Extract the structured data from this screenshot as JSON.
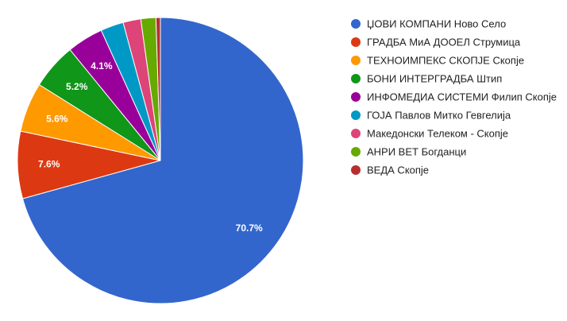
{
  "chart_data": {
    "type": "pie",
    "categories": [
      "ЏОВИ КОМПАНИ Ново Село",
      "ГРАДБА МиА ДООЕЛ Струмица",
      "ТЕХНОИМПЕКС СКОПЈЕ Скопје",
      "БОНИ ИНТЕРГРАДБА Штип",
      "ИНФОМЕДИА СИСТЕМИ Филип Скопје",
      "ГОЈА Павлов Митко Гевгелија",
      "Македонски Телеком - Скопје",
      "АНРИ ВЕТ Богданци",
      "ВЕДА Скопје"
    ],
    "values": [
      70.7,
      7.6,
      5.6,
      5.2,
      4.1,
      2.6,
      2.0,
      1.7,
      0.5
    ],
    "data_labels": [
      "70.7%",
      "7.6%",
      "5.6%",
      "5.2%",
      "4.1%",
      "",
      "",
      "",
      ""
    ],
    "colors": [
      "#3366cc",
      "#dc3912",
      "#ff9900",
      "#109618",
      "#990099",
      "#0099c6",
      "#dd4477",
      "#66aa00",
      "#b82e2e"
    ],
    "start_angle": "top, clockwise",
    "legend_position": "right"
  }
}
